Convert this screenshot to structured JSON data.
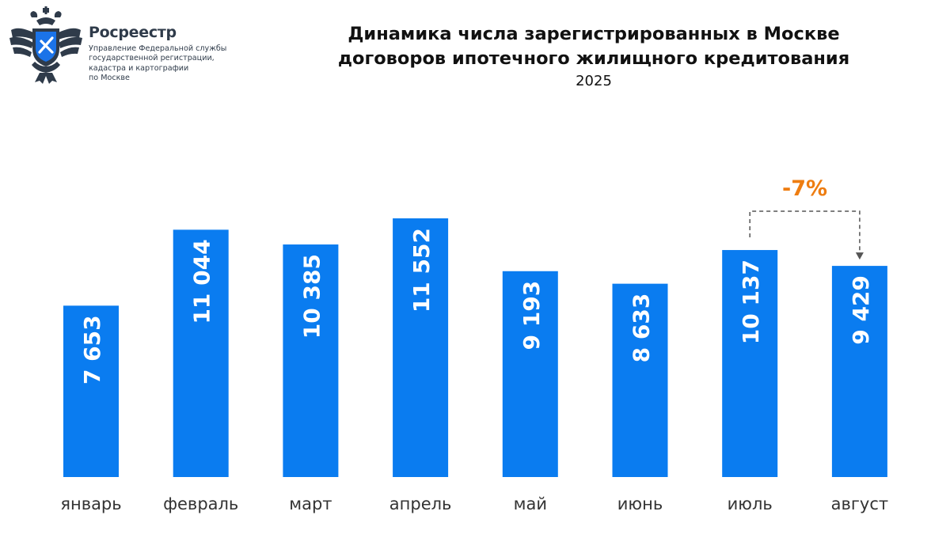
{
  "header": {
    "org_name": "Росреестр",
    "org_description": "Управление Федеральной службы\nгосударственной регистрации,\nкадастра и картографии\nпо Москве"
  },
  "colors": {
    "bar": "#0a7cf0",
    "bar_label": "#ffffff",
    "annotation": "#ee7d11",
    "axis_text": "#333333",
    "emblem": "#2f3b4a",
    "emblem_accent": "#1b73e8"
  },
  "chart_data": {
    "type": "bar",
    "title": "Динамика числа зарегистрированных в Москве\nдоговоров ипотечного жилищного кредитования",
    "subtitle": "2025",
    "categories": [
      "январь",
      "февраль",
      "март",
      "апрель",
      "май",
      "июнь",
      "июль",
      "август"
    ],
    "values": [
      7653,
      11044,
      10385,
      11552,
      9193,
      8633,
      10137,
      9429
    ],
    "value_labels": [
      "7 653",
      "11 044",
      "10 385",
      "11 552",
      "9 193",
      "8 633",
      "10 137",
      "9 429"
    ],
    "ylim": [
      0,
      11552
    ],
    "grid": false,
    "annotation": {
      "text": "-7%",
      "from": "июль",
      "to": "август"
    }
  }
}
